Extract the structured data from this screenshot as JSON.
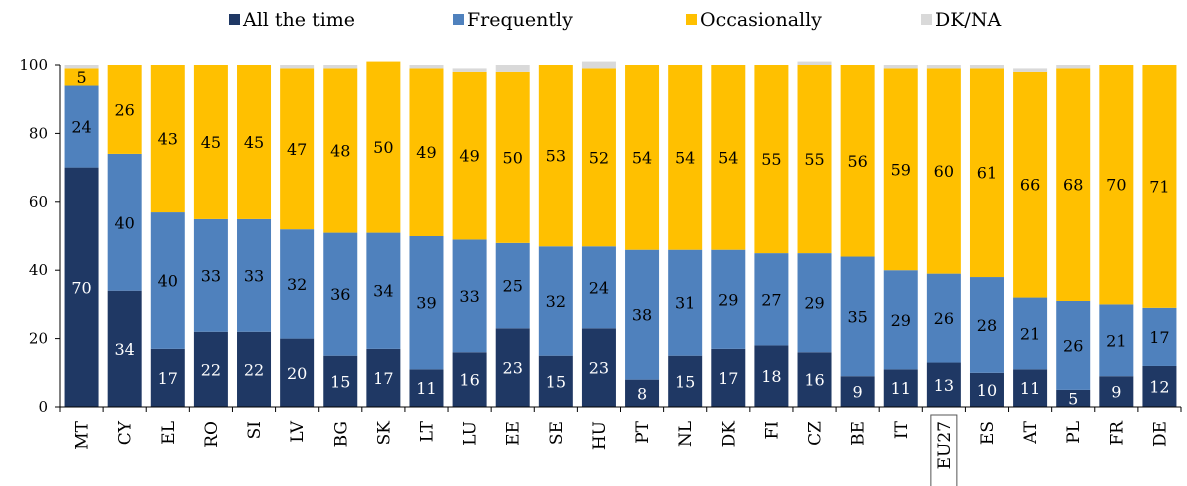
{
  "chart_data": {
    "type": "bar",
    "stacked": true,
    "ylim": [
      0,
      100
    ],
    "yticks": [
      0,
      20,
      40,
      60,
      80,
      100
    ],
    "grid": false,
    "legend_position": "top",
    "highlighted_category": "EU27",
    "categories": [
      "MT",
      "CY",
      "EL",
      "RO",
      "SI",
      "LV",
      "BG",
      "SK",
      "LT",
      "LU",
      "EE",
      "SE",
      "HU",
      "PT",
      "NL",
      "DK",
      "FI",
      "CZ",
      "BE",
      "IT",
      "EU27",
      "ES",
      "AT",
      "PL",
      "FR",
      "DE"
    ],
    "series": [
      {
        "name": "All the time",
        "color": "#1f3864",
        "label_color": "#ffffff",
        "values": [
          70,
          34,
          17,
          22,
          22,
          20,
          15,
          17,
          11,
          16,
          23,
          15,
          23,
          8,
          15,
          17,
          18,
          16,
          9,
          11,
          13,
          10,
          11,
          5,
          9,
          12
        ]
      },
      {
        "name": "Frequently",
        "color": "#4f81bd",
        "label_color": "#000000",
        "values": [
          24,
          40,
          40,
          33,
          33,
          32,
          36,
          34,
          39,
          33,
          25,
          32,
          24,
          38,
          31,
          29,
          27,
          29,
          35,
          29,
          26,
          28,
          21,
          26,
          21,
          17
        ]
      },
      {
        "name": "Occasionally",
        "color": "#ffc000",
        "label_color": "#000000",
        "values": [
          5,
          26,
          43,
          45,
          45,
          47,
          48,
          50,
          49,
          49,
          50,
          53,
          52,
          54,
          54,
          54,
          55,
          55,
          56,
          59,
          60,
          61,
          66,
          68,
          70,
          71
        ]
      },
      {
        "name": "DK/NA",
        "color": "#d9d9d9",
        "label_color": "#000000",
        "values": [
          1,
          0,
          0,
          0,
          0,
          1,
          1,
          0,
          1,
          1,
          2,
          0,
          2,
          0,
          0,
          0,
          0,
          1,
          0,
          1,
          1,
          1,
          1,
          1,
          0,
          0
        ]
      }
    ]
  }
}
